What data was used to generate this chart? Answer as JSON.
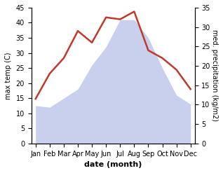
{
  "months": [
    "Jan",
    "Feb",
    "Mar",
    "Apr",
    "May",
    "Jun",
    "Jul",
    "Aug",
    "Sep",
    "Oct",
    "Nov",
    "Dec"
  ],
  "max_temp": [
    12.5,
    12,
    15,
    18,
    26,
    32,
    41,
    41,
    35,
    25,
    16,
    13
  ],
  "precipitation": [
    11.5,
    18,
    22,
    29,
    26,
    32.5,
    32,
    34,
    24,
    22,
    19,
    14
  ],
  "temp_fill_color": "#c8d0ed",
  "precip_line_color": "#c0392b",
  "temp_ylim": [
    0,
    45
  ],
  "precip_ylim": [
    0,
    35
  ],
  "ylabel_left": "max temp (C)",
  "ylabel_right": "med. precipitation (kg/m2)",
  "xlabel": "date (month)",
  "bg_color": "#ffffff",
  "precip_linewidth": 1.8,
  "tick_label_fontsize": 7,
  "axis_label_fontsize": 8
}
